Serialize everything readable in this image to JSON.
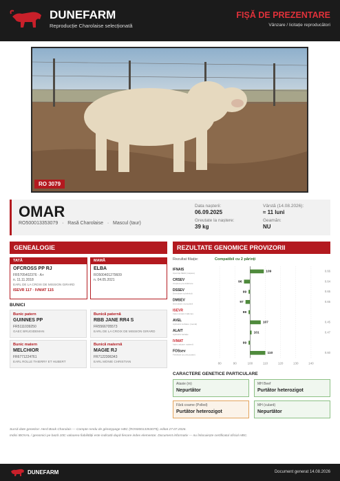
{
  "header": {
    "brand": "DUNEFARM",
    "tagline": "Reproducție Charolaise selecționată",
    "doc_title": "FIȘĂ DE PREZENTARE",
    "doc_subtitle": "Vânzare / licitație reproducători"
  },
  "photo": {
    "tag": "RO 3079"
  },
  "animal": {
    "name": "OMAR",
    "id": "RO500013353079",
    "separator": "·",
    "breed": "Rasă Charolaise",
    "sex": "Mascul (taur)",
    "birth_date_label": "Data nașterii:",
    "birth_date": "06.09.2025",
    "birth_weight_label": "Greutate la naștere:",
    "birth_weight": "39 kg",
    "age_label": "Vârstă (14.08.2026):",
    "age": "≈ 11 luni",
    "twin_label": "Geamăn:",
    "twin": "NU"
  },
  "genealogy": {
    "title": "GENEALOGIE",
    "sire": {
      "label": "TATĂ",
      "name": "OFCROSS PP  RJ",
      "reg": "FR5705402376 · A+",
      "born": "n. 11.11.2018",
      "breeder": "EARL DE LA CROIX DE MISSION GIRARD",
      "indices": "ISEVR 117 · IVMAT 115"
    },
    "dam": {
      "label": "MAMĂ",
      "name": "ELBA",
      "reg": "RO500401279609",
      "born": "n. 04.05.2021"
    },
    "grandparents_title": "BUNICI",
    "grandparents": [
      {
        "label": "Bunic patern",
        "name": "GUINNES PP",
        "reg": "FR5111039250",
        "breeder": "GAEC BRUGIDEMAN"
      },
      {
        "label": "Bunică paternă",
        "name": "RBB JANE RR4 S",
        "reg": "FR5566705573",
        "breeder": "EARL DE LA CROIX DE MISSION GIRARD"
      },
      {
        "label": "Bunic matern",
        "name": "MELCHIOR",
        "reg": "FR6771224761",
        "breeder": "EARL ROLLE THIERRY ET HUBERT"
      },
      {
        "label": "Bunică maternă",
        "name": "MAGIE RJ",
        "reg": "FR7122306343",
        "breeder": "EARL MONIE CHRISTIAN"
      }
    ]
  },
  "genomics": {
    "title": "REZULTATE GENOMICE PROVIZORII",
    "filiation_label": "Rezultat filiație:",
    "filiation": "Compatibil cu 2 părinți",
    "chart": {
      "type": "bar",
      "orientation": "horizontal",
      "categories": [
        "IFNAIS",
        "CRSEV",
        "DSSEV",
        "DMSEV",
        "ISEVR",
        "AVEL",
        "ALAIT",
        "IVMAT",
        "FOSsev"
      ],
      "descriptions": [
        "Ușurința fătării (naștere)",
        "Creștere pre-înțărcare",
        "Dezvoltare scheletică",
        "Dezvoltare musculară",
        "Index sintetic înțărcare",
        "Aptitudini la fătare (mamă)",
        "Aptitudini lactație",
        "Index valoare maternă",
        "Fertilitate (și precocitate)"
      ],
      "label_colors": [
        "#222222",
        "#222222",
        "#222222",
        "#222222",
        "#c8202a",
        "#222222",
        "#222222",
        "#c8202a",
        "#222222"
      ],
      "values": [
        109,
        96,
        99,
        97,
        99,
        107,
        101,
        99,
        110
      ],
      "reliability": [
        "0.66",
        "0.64",
        "0.65",
        "0.65",
        null,
        "0.45",
        "0.47",
        null,
        "0.60"
      ],
      "color": "#4f8a3c",
      "baseline": 100,
      "xlim": [
        75,
        145
      ],
      "xticks": [
        80,
        90,
        100,
        110,
        120,
        130,
        140
      ],
      "grid": true
    }
  },
  "genetic_traits": {
    "title": "CARACTERE GENETICE PARTICULARE",
    "items": [
      {
        "label": "Ataxie (m)",
        "status": "Nepurtător",
        "color": "#8cc084"
      },
      {
        "label": "MH Beef",
        "status": "Purtător heterozigot",
        "color": "#8cc084"
      },
      {
        "label": "Fără coarne (Polled)",
        "status": "Purtător heterozigot",
        "color": "#e3a35c"
      },
      {
        "label": "MH (culard)",
        "status": "Nepurtător",
        "color": "#8cc084"
      }
    ]
  },
  "notes": [
    "Sursă date genetice: Herd Book Charolais — Compte rendu de génotypage HBC (RO500013353079), editat 27.07.2026.",
    "Indici IBOVAL / genomici pe bază 100; valoarea fiabilității este indicată după fiecare index elementar. Document informativ — nu înlocuiește certificatul oficial HBC."
  ],
  "footer": {
    "brand": "DUNEFARM",
    "generated": "Document generat 14.08.2026"
  }
}
